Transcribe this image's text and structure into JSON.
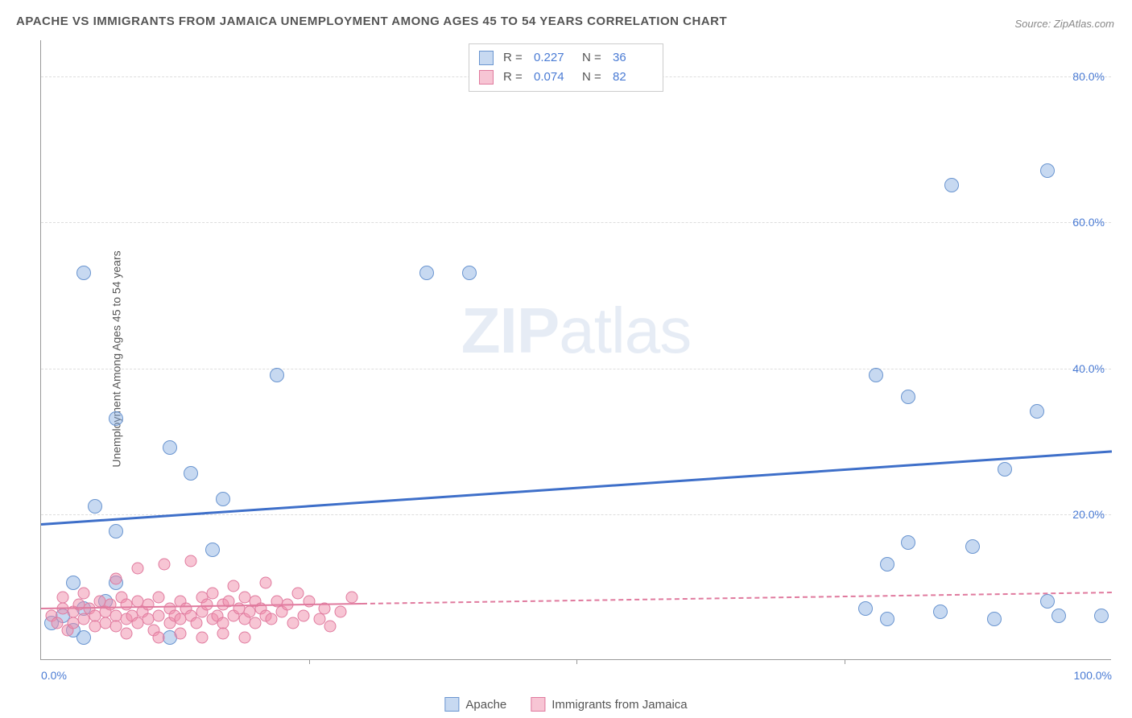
{
  "title": "APACHE VS IMMIGRANTS FROM JAMAICA UNEMPLOYMENT AMONG AGES 45 TO 54 YEARS CORRELATION CHART",
  "source": "Source: ZipAtlas.com",
  "ylabel": "Unemployment Among Ages 45 to 54 years",
  "watermark_bold": "ZIP",
  "watermark_rest": "atlas",
  "chart": {
    "type": "scatter",
    "xlim": [
      0,
      100
    ],
    "ylim": [
      0,
      85
    ],
    "xticks": [
      {
        "v": 0,
        "label": "0.0%"
      },
      {
        "v": 50,
        "label": ""
      },
      {
        "v": 100,
        "label": "100.0%"
      }
    ],
    "xtick_marks": [
      25,
      50,
      75
    ],
    "yticks": [
      {
        "v": 20,
        "label": "20.0%"
      },
      {
        "v": 40,
        "label": "40.0%"
      },
      {
        "v": 60,
        "label": "60.0%"
      },
      {
        "v": 80,
        "label": "80.0%"
      }
    ],
    "background_color": "#ffffff",
    "grid_color": "#dddddd",
    "tick_label_color": "#4a7bd4",
    "series": [
      {
        "name": "Apache",
        "fill": "rgba(130,170,225,0.45)",
        "stroke": "#6a95d0",
        "marker_size": 18,
        "trend": {
          "y0": 18.8,
          "y1": 28.8,
          "color": "#3e6fc9",
          "width": 3,
          "dashed_beyond_x": null
        },
        "r_label": "R =",
        "r_value": "0.227",
        "n_label": "N =",
        "n_value": "36",
        "points": [
          [
            4,
            53
          ],
          [
            36,
            53
          ],
          [
            40,
            53
          ],
          [
            85,
            65
          ],
          [
            94,
            67
          ],
          [
            78,
            39
          ],
          [
            81,
            36
          ],
          [
            93,
            34
          ],
          [
            22,
            39
          ],
          [
            7,
            33
          ],
          [
            12,
            29
          ],
          [
            14,
            25.5
          ],
          [
            17,
            22
          ],
          [
            5,
            21
          ],
          [
            7,
            17.5
          ],
          [
            90,
            26
          ],
          [
            16,
            15
          ],
          [
            79,
            13
          ],
          [
            87,
            15.5
          ],
          [
            81,
            16
          ],
          [
            3,
            10.5
          ],
          [
            7,
            10.5
          ],
          [
            4,
            7
          ],
          [
            6,
            8
          ],
          [
            2,
            6
          ],
          [
            1,
            5
          ],
          [
            3,
            4
          ],
          [
            77,
            7
          ],
          [
            79,
            5.5
          ],
          [
            94,
            8
          ],
          [
            95,
            6
          ],
          [
            84,
            6.5
          ],
          [
            89,
            5.5
          ],
          [
            99,
            6
          ],
          [
            12,
            3
          ],
          [
            4,
            3
          ]
        ]
      },
      {
        "name": "Immigrants from Jamaica",
        "fill": "rgba(240,140,170,0.5)",
        "stroke": "#e07a9e",
        "marker_size": 15,
        "trend": {
          "y0": 7.2,
          "y1": 9.4,
          "color": "#e07a9e",
          "width": 2,
          "dashed_beyond_x": 30
        },
        "r_label": "R =",
        "r_value": "0.074",
        "n_label": "N =",
        "n_value": "82",
        "points": [
          [
            1,
            6
          ],
          [
            1.5,
            5
          ],
          [
            2,
            7
          ],
          [
            2.5,
            4
          ],
          [
            2,
            8.5
          ],
          [
            3,
            6.5
          ],
          [
            3,
            5
          ],
          [
            3.5,
            7.5
          ],
          [
            4,
            5.5
          ],
          [
            4,
            9
          ],
          [
            4.5,
            7
          ],
          [
            5,
            6
          ],
          [
            5,
            4.5
          ],
          [
            5.5,
            8
          ],
          [
            6,
            6.5
          ],
          [
            6,
            5
          ],
          [
            6.5,
            7.5
          ],
          [
            7,
            6
          ],
          [
            7,
            4.5
          ],
          [
            7.5,
            8.5
          ],
          [
            8,
            5.5
          ],
          [
            8,
            7.5
          ],
          [
            8.5,
            6
          ],
          [
            9,
            5
          ],
          [
            9,
            8
          ],
          [
            9.5,
            6.5
          ],
          [
            10,
            5.5
          ],
          [
            10,
            7.5
          ],
          [
            10.5,
            4
          ],
          [
            11,
            6
          ],
          [
            11,
            8.5
          ],
          [
            11.5,
            13
          ],
          [
            12,
            5
          ],
          [
            12,
            7
          ],
          [
            12.5,
            6
          ],
          [
            13,
            8
          ],
          [
            13,
            5.5
          ],
          [
            13.5,
            7
          ],
          [
            14,
            13.5
          ],
          [
            14,
            6
          ],
          [
            14.5,
            5
          ],
          [
            15,
            8.5
          ],
          [
            15,
            6.5
          ],
          [
            15.5,
            7.5
          ],
          [
            16,
            5.5
          ],
          [
            16,
            9
          ],
          [
            16.5,
            6
          ],
          [
            17,
            7.5
          ],
          [
            17,
            5
          ],
          [
            17.5,
            8
          ],
          [
            18,
            6
          ],
          [
            18,
            10
          ],
          [
            18.5,
            7
          ],
          [
            19,
            5.5
          ],
          [
            19,
            8.5
          ],
          [
            19.5,
            6.5
          ],
          [
            20,
            5
          ],
          [
            20,
            8
          ],
          [
            20.5,
            7
          ],
          [
            21,
            10.5
          ],
          [
            21,
            6
          ],
          [
            21.5,
            5.5
          ],
          [
            22,
            8
          ],
          [
            22.5,
            6.5
          ],
          [
            23,
            7.5
          ],
          [
            23.5,
            5
          ],
          [
            24,
            9
          ],
          [
            24.5,
            6
          ],
          [
            25,
            8
          ],
          [
            26,
            5.5
          ],
          [
            26.5,
            7
          ],
          [
            27,
            4.5
          ],
          [
            28,
            6.5
          ],
          [
            29,
            8.5
          ],
          [
            9,
            12.5
          ],
          [
            7,
            11
          ],
          [
            11,
            3
          ],
          [
            13,
            3.5
          ],
          [
            15,
            3
          ],
          [
            17,
            3.5
          ],
          [
            19,
            3
          ],
          [
            8,
            3.5
          ]
        ]
      }
    ]
  },
  "legend_bottom": [
    {
      "label": "Apache",
      "fill": "rgba(130,170,225,0.45)",
      "stroke": "#6a95d0"
    },
    {
      "label": "Immigrants from Jamaica",
      "fill": "rgba(240,140,170,0.5)",
      "stroke": "#e07a9e"
    }
  ]
}
